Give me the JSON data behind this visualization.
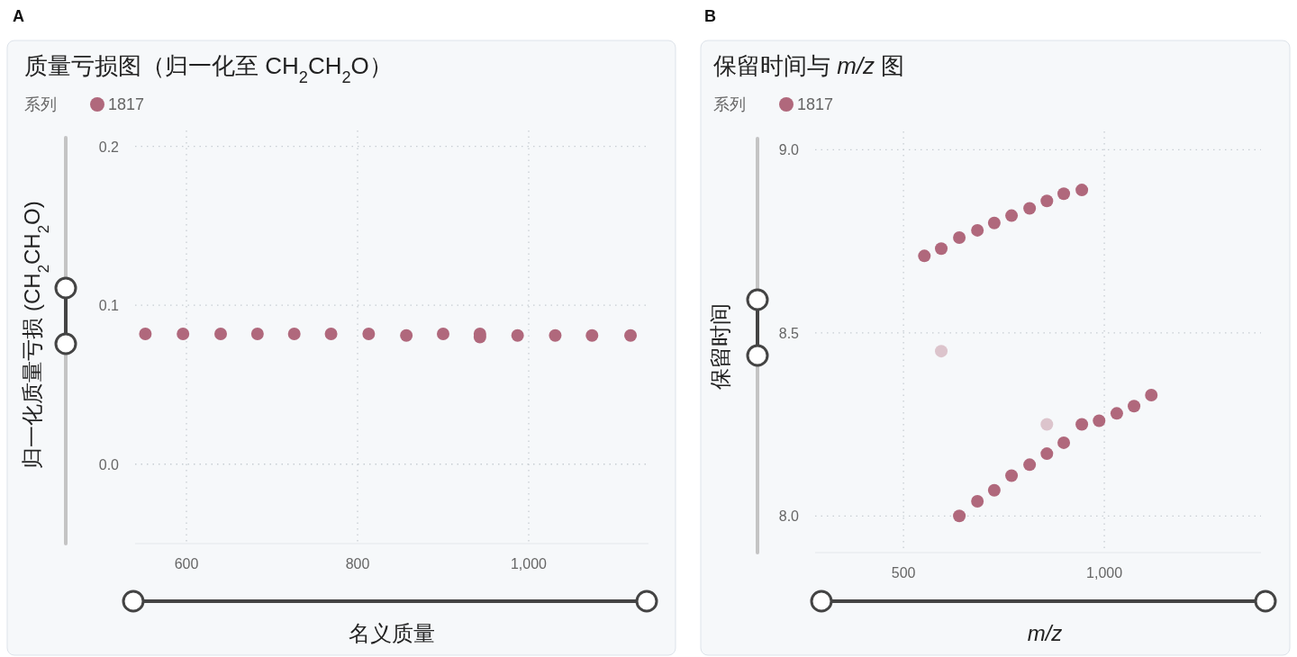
{
  "chart_data": [
    {
      "type": "scatter",
      "title": "质量亏损图（归一化至 CH$_{2}$CH$_{2}$O）",
      "xlabel": "名义质量",
      "ylabel": "归一化质量亏损 (CH$_{2}$CH$_{2}$O)",
      "legend_title": "系列",
      "annotations": [
        "A"
      ],
      "legend": "top left",
      "grid": true,
      "marker": "circle",
      "xlim": [
        540,
        1140
      ],
      "xticks": [
        600,
        800,
        {
          "value": 1000,
          "label": "1,000"
        }
      ],
      "ylim": [
        -0.05,
        0.21
      ],
      "yticks": [
        {
          "value": 0,
          "label": "0.0"
        },
        0.1,
        0.2
      ],
      "series": [
        {
          "name": "1817",
          "color": "#b0687c",
          "x": [
            552,
            596,
            640,
            683,
            726,
            769,
            813,
            857,
            900,
            943,
            943,
            987,
            1031,
            1074,
            1119
          ],
          "values": [
            0.082,
            0.082,
            0.082,
            0.082,
            0.082,
            0.082,
            0.082,
            0.081,
            0.082,
            0.082,
            0.08,
            0.081,
            0.081,
            0.081,
            0.081
          ]
        }
      ]
    },
    {
      "type": "scatter",
      "title": "保留时间与 *m/z* 图",
      "xlabel": "m/z",
      "ylabel": "保留时间",
      "legend_title": "系列",
      "annotations": [
        "B"
      ],
      "legend": "top left",
      "grid": true,
      "marker": "circle",
      "xlim": [
        280,
        1390
      ],
      "xticks": [
        500,
        {
          "value": 1000,
          "label": "1,000"
        }
      ],
      "ylim": [
        7.9,
        9.05
      ],
      "yticks": [
        {
          "value": 8,
          "label": "8.0"
        },
        8.5,
        {
          "value": 9,
          "label": "9.0"
        }
      ],
      "series": [
        {
          "name": "1817",
          "color": "#b0687c",
          "x": [
            552,
            594,
            639,
            684,
            726,
            769,
            814,
            857,
            899,
            944,
            639,
            684,
            726,
            769,
            814,
            857,
            899,
            944,
            987,
            1031,
            1074,
            1117,
            594,
            857
          ],
          "values": [
            8.71,
            8.73,
            8.76,
            8.78,
            8.8,
            8.82,
            8.84,
            8.86,
            8.88,
            8.89,
            8.0,
            8.04,
            8.07,
            8.11,
            8.14,
            8.17,
            8.2,
            8.25,
            8.26,
            8.28,
            8.3,
            8.33,
            8.45,
            8.25
          ],
          "colors": [
            "#b0687c",
            "#b0687c",
            "#b0687c",
            "#b0687c",
            "#b0687c",
            "#b0687c",
            "#b0687c",
            "#b0687c",
            "#b0687c",
            "#b0687c",
            "#b0687c",
            "#b0687c",
            "#b0687c",
            "#b0687c",
            "#b0687c",
            "#b0687c",
            "#b0687c",
            "#b0687c",
            "#b0687c",
            "#b0687c",
            "#b0687c",
            "#b0687c",
            "#dcc4cc",
            "#dcc4cc"
          ]
        }
      ]
    }
  ]
}
